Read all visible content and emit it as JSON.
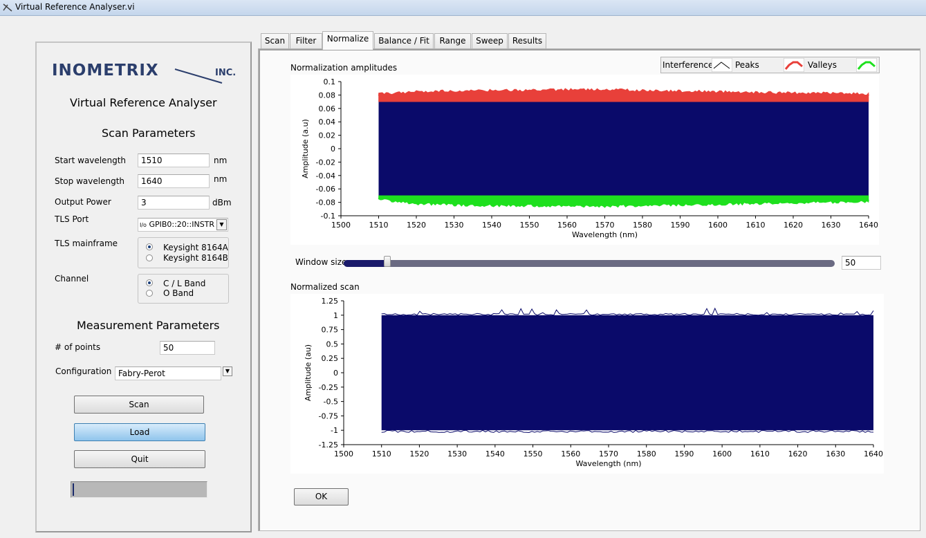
{
  "window": {
    "title": "Virtual Reference Analyser.vi"
  },
  "left": {
    "logo_text": "INOMETRIX",
    "logo_suffix": "INC.",
    "app_title": "Virtual Reference Analyser",
    "scan_params_heading": "Scan Parameters",
    "start_label": "Start wavelength",
    "start_value": "1510",
    "start_unit": "nm",
    "stop_label": "Stop wavelength",
    "stop_value": "1640",
    "stop_unit": "nm",
    "power_label": "Output Power",
    "power_value": "3",
    "power_unit": "dBm",
    "tls_port_label": "TLS Port",
    "tls_port_prefix": "I/o",
    "tls_port_value": "GPIB0::20::INSTR",
    "mainframe_label": "TLS mainframe",
    "mainframe_options": [
      "Keysight 8164A",
      "Keysight 8164B"
    ],
    "mainframe_selected": 0,
    "channel_label": "Channel",
    "channel_options": [
      "C / L Band",
      "O Band"
    ],
    "channel_selected": 0,
    "meas_params_heading": "Measurement Parameters",
    "points_label": "# of points",
    "points_value": "50",
    "config_label": "Configuration",
    "config_value": "Fabry-Perot",
    "scan_button": "Scan",
    "load_button": "Load",
    "quit_button": "Quit",
    "progress": 0.01
  },
  "tabs": [
    {
      "label": "Scan"
    },
    {
      "label": "Filter"
    },
    {
      "label": "Normalize"
    },
    {
      "label": "Balance / Fit"
    },
    {
      "label": "Range"
    },
    {
      "label": "Sweep"
    },
    {
      "label": "Results"
    }
  ],
  "selected_tab": 2,
  "normalize": {
    "plot1_title": "Normalization amplitudes",
    "legend": [
      {
        "label": "Interference",
        "color": "#000000"
      },
      {
        "label": "Peaks",
        "color": "#e8403a"
      },
      {
        "label": "Valleys",
        "color": "#1ee01e"
      }
    ],
    "window_label": "Window size",
    "window_value": "50",
    "plot2_title": "Normalized scan",
    "ok_button": "OK"
  },
  "chart_data": [
    {
      "type": "area",
      "title": "Normalization amplitudes",
      "xlabel": "Wavelength (nm)",
      "ylabel": "Amplitude (a.u)",
      "xlim": [
        1500,
        1640
      ],
      "ylim": [
        -0.1,
        0.1
      ],
      "x_ticks": [
        "1500",
        "1510",
        "1520",
        "1530",
        "1540",
        "1550",
        "1560",
        "1570",
        "1580",
        "1590",
        "1600",
        "1610",
        "1620",
        "1630",
        "1640"
      ],
      "y_ticks": [
        "0.1",
        "0.08",
        "0.06",
        "0.04",
        "0.02",
        "0",
        "-0.02",
        "-0.04",
        "-0.06",
        "-0.08",
        "-0.1"
      ],
      "series": [
        {
          "name": "Interference",
          "color": "#0a0a6a",
          "x_range": [
            1510,
            1640
          ],
          "y_range": [
            -0.072,
            0.072
          ]
        },
        {
          "name": "Peaks",
          "color": "#e8403a",
          "x": [
            1510,
            1520,
            1530,
            1540,
            1550,
            1560,
            1570,
            1580,
            1590,
            1600,
            1610,
            1620,
            1630,
            1640
          ],
          "y": [
            0.08,
            0.083,
            0.084,
            0.085,
            0.085,
            0.086,
            0.086,
            0.085,
            0.084,
            0.083,
            0.082,
            0.081,
            0.081,
            0.08
          ]
        },
        {
          "name": "Valleys",
          "color": "#1ee01e",
          "x": [
            1510,
            1520,
            1530,
            1540,
            1550,
            1560,
            1570,
            1580,
            1590,
            1600,
            1610,
            1620,
            1630,
            1640
          ],
          "y": [
            -0.074,
            -0.08,
            -0.082,
            -0.083,
            -0.083,
            -0.084,
            -0.084,
            -0.083,
            -0.082,
            -0.081,
            -0.08,
            -0.079,
            -0.078,
            -0.077
          ]
        }
      ]
    },
    {
      "type": "area",
      "title": "Normalized scan",
      "xlabel": "Wavelength (nm)",
      "ylabel": "Amplitude (au)",
      "xlim": [
        1500,
        1640
      ],
      "ylim": [
        -1.25,
        1.25
      ],
      "x_ticks": [
        "1500",
        "1510",
        "1520",
        "1530",
        "1540",
        "1550",
        "1560",
        "1570",
        "1580",
        "1590",
        "1600",
        "1610",
        "1620",
        "1630",
        "1640"
      ],
      "y_ticks": [
        "1.25",
        "1",
        "0.75",
        "0.5",
        "0.25",
        "0",
        "-0.25",
        "-0.5",
        "-0.75",
        "-1",
        "-1.25"
      ],
      "series": [
        {
          "color": "#0a0a6a",
          "x_range": [
            1510,
            1640
          ],
          "y_range": [
            -1,
            1
          ]
        }
      ]
    }
  ]
}
